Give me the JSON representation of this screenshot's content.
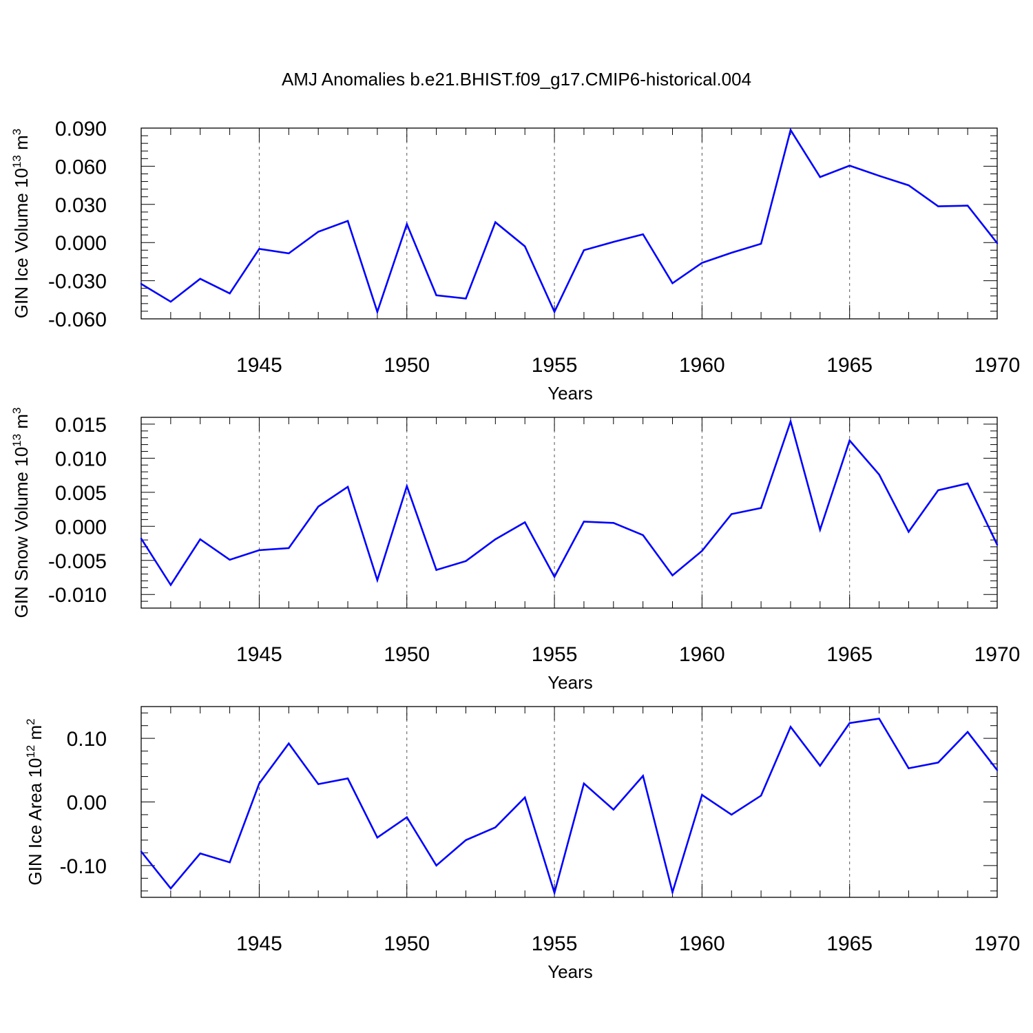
{
  "title": "AMJ Anomalies b.e21.BHIST.f09_g17.CMIP6-historical.004",
  "colors": {
    "line": "#0000ff",
    "axis": "#000000",
    "grid": "#555555"
  },
  "chart_data": [
    {
      "type": "line",
      "title": "AMJ Anomalies b.e21.BHIST.f09_g17.CMIP6-historical.004",
      "xlabel": "Years",
      "ylabel": "GIN Ice Volume 10",
      "ylabel_exp": "13",
      "ylabel_unit": " m",
      "ylabel_unit_exp": "3",
      "xlim": [
        1941,
        1970
      ],
      "ylim": [
        -0.06,
        0.09
      ],
      "yticks": [
        -0.06,
        -0.03,
        0.0,
        0.03,
        0.06,
        0.09
      ],
      "ytick_labels": [
        "-0.060",
        "-0.030",
        "0.000",
        "0.030",
        "0.060",
        "0.090"
      ],
      "xticks": [
        1945,
        1950,
        1955,
        1960,
        1965,
        1970
      ],
      "xtick_labels": [
        "1945",
        "1950",
        "1955",
        "1960",
        "1965",
        "1970"
      ],
      "grid": "vertical dashed at major x ticks",
      "series": [
        {
          "name": "GIN Ice Volume",
          "x": [
            1941,
            1942,
            1943,
            1944,
            1945,
            1946,
            1947,
            1948,
            1949,
            1950,
            1951,
            1952,
            1953,
            1954,
            1955,
            1956,
            1957,
            1958,
            1959,
            1960,
            1961,
            1962,
            1963,
            1964,
            1965,
            1966,
            1967,
            1968,
            1969,
            1970
          ],
          "values": [
            -0.0325,
            -0.0465,
            -0.0285,
            -0.04,
            -0.005,
            -0.0085,
            0.0085,
            0.017,
            -0.0545,
            0.0145,
            -0.0415,
            -0.044,
            0.016,
            -0.003,
            -0.0545,
            -0.006,
            0.0005,
            0.0065,
            -0.032,
            -0.016,
            -0.008,
            -0.001,
            0.0885,
            0.0515,
            0.0605,
            0.0525,
            0.045,
            0.0285,
            0.029,
            -0.0005
          ]
        }
      ]
    },
    {
      "type": "line",
      "xlabel": "Years",
      "ylabel": "GIN Snow Volume 10",
      "ylabel_exp": "13",
      "ylabel_unit": " m",
      "ylabel_unit_exp": "3",
      "xlim": [
        1941,
        1970
      ],
      "ylim": [
        -0.012,
        0.016
      ],
      "yticks": [
        -0.01,
        -0.005,
        0.0,
        0.005,
        0.01,
        0.015
      ],
      "ytick_labels": [
        "-0.010",
        "-0.005",
        "0.000",
        "0.005",
        "0.010",
        "0.015"
      ],
      "xticks": [
        1945,
        1950,
        1955,
        1960,
        1965,
        1970
      ],
      "xtick_labels": [
        "1945",
        "1950",
        "1955",
        "1960",
        "1965",
        "1970"
      ],
      "grid": "vertical dashed at major x ticks",
      "series": [
        {
          "name": "GIN Snow Volume",
          "x": [
            1941,
            1942,
            1943,
            1944,
            1945,
            1946,
            1947,
            1948,
            1949,
            1950,
            1951,
            1952,
            1953,
            1954,
            1955,
            1956,
            1957,
            1958,
            1959,
            1960,
            1961,
            1962,
            1963,
            1964,
            1965,
            1966,
            1967,
            1968,
            1969,
            1970
          ],
          "values": [
            -0.0018,
            -0.0086,
            -0.0019,
            -0.0049,
            -0.0035,
            -0.0032,
            0.0029,
            0.0058,
            -0.0079,
            0.0059,
            -0.0064,
            -0.0051,
            -0.0019,
            0.0006,
            -0.0074,
            0.0007,
            0.0005,
            -0.0013,
            -0.0072,
            -0.0036,
            0.0018,
            0.0027,
            0.0154,
            -0.0005,
            0.0126,
            0.0076,
            -0.0008,
            0.0053,
            0.0063,
            -0.0027
          ]
        }
      ]
    },
    {
      "type": "line",
      "xlabel": "Years",
      "ylabel": "GIN Ice Area 10",
      "ylabel_exp": "12",
      "ylabel_unit": " m",
      "ylabel_unit_exp": "2",
      "xlim": [
        1941,
        1970
      ],
      "ylim": [
        -0.15,
        0.15
      ],
      "yticks": [
        -0.1,
        0.0,
        0.1
      ],
      "ytick_labels": [
        "-0.10",
        "0.00",
        "0.10"
      ],
      "xticks": [
        1945,
        1950,
        1955,
        1960,
        1965,
        1970
      ],
      "xtick_labels": [
        "1945",
        "1950",
        "1955",
        "1960",
        "1965",
        "1970"
      ],
      "grid": "vertical dashed at major x ticks",
      "series": [
        {
          "name": "GIN Ice Area",
          "x": [
            1941,
            1942,
            1943,
            1944,
            1945,
            1946,
            1947,
            1948,
            1949,
            1950,
            1951,
            1952,
            1953,
            1954,
            1955,
            1956,
            1957,
            1958,
            1959,
            1960,
            1961,
            1962,
            1963,
            1964,
            1965,
            1966,
            1967,
            1968,
            1969,
            1970
          ],
          "values": [
            -0.078,
            -0.136,
            -0.081,
            -0.095,
            0.029,
            0.092,
            0.028,
            0.037,
            -0.056,
            -0.024,
            -0.1,
            -0.06,
            -0.04,
            0.007,
            -0.143,
            0.029,
            -0.012,
            0.041,
            -0.142,
            0.011,
            -0.02,
            0.01,
            0.118,
            0.057,
            0.124,
            0.131,
            0.053,
            0.062,
            0.11,
            0.05
          ]
        }
      ]
    }
  ]
}
